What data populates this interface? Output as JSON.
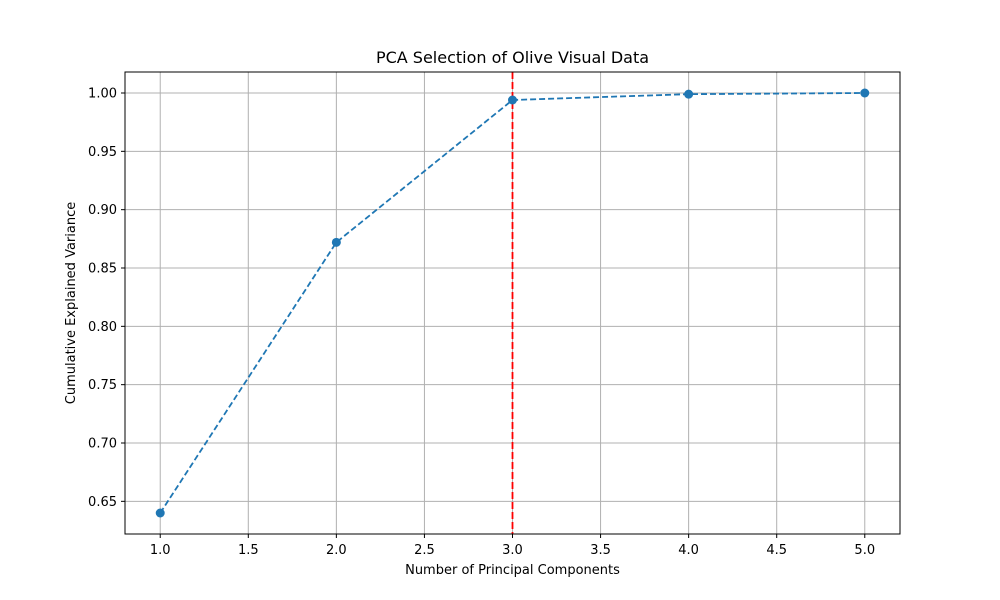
{
  "chart_data": {
    "type": "line",
    "title": "PCA Selection of Olive Visual Data",
    "xlabel": "Number of Principal Components",
    "ylabel": "Cumulative Explained Variance",
    "x": [
      1,
      2,
      3,
      4,
      5
    ],
    "series": [
      {
        "values": [
          0.64,
          0.872,
          0.994,
          0.999,
          1.0
        ],
        "color": "#1f77b4",
        "line_style": "dashed",
        "marker": "circle"
      }
    ],
    "vline": {
      "x": 3,
      "color": "#ff0000",
      "line_style": "dashed"
    },
    "xlim": [
      0.8,
      5.2
    ],
    "ylim": [
      0.622,
      1.018
    ],
    "xticks": [
      1.0,
      1.5,
      2.0,
      2.5,
      3.0,
      3.5,
      4.0,
      4.5,
      5.0
    ],
    "xtick_labels": [
      "1.0",
      "1.5",
      "2.0",
      "2.5",
      "3.0",
      "3.5",
      "4.0",
      "4.5",
      "5.0"
    ],
    "yticks": [
      0.65,
      0.7,
      0.75,
      0.8,
      0.85,
      0.9,
      0.95,
      1.0
    ],
    "ytick_labels": [
      "0.65",
      "0.70",
      "0.75",
      "0.80",
      "0.85",
      "0.90",
      "0.95",
      "1.00"
    ],
    "grid": true,
    "grid_color": "#b0b0b0"
  }
}
